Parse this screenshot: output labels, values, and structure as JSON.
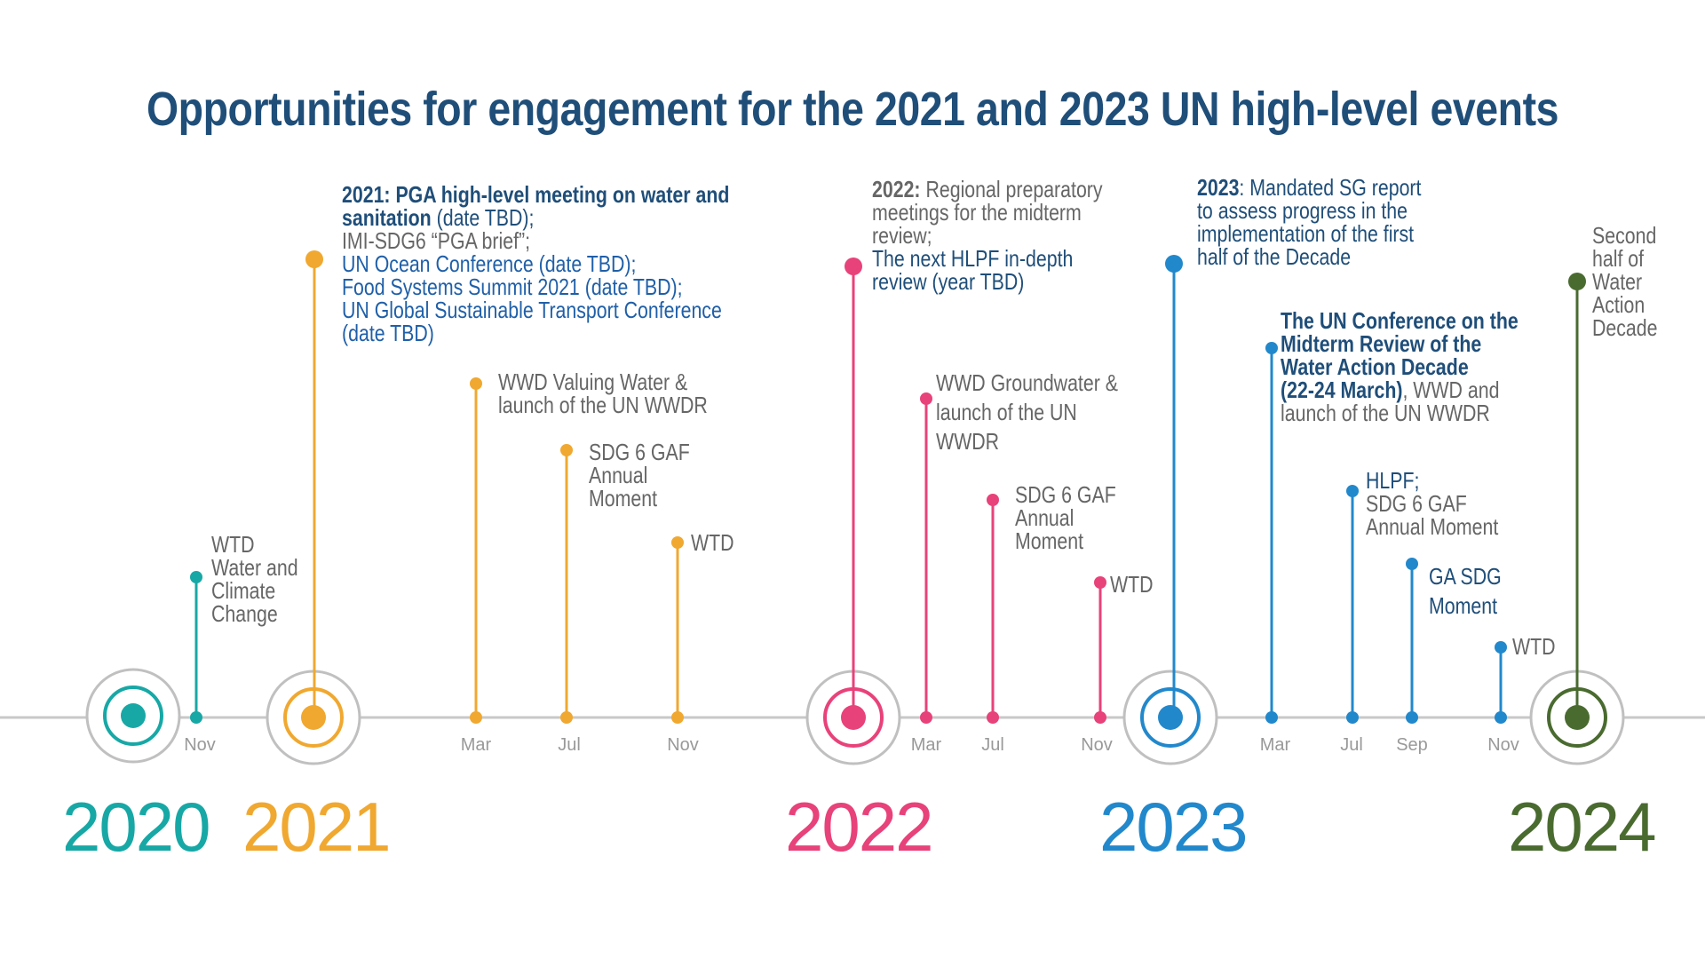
{
  "title": "Opportunities for engagement for the 2021 and 2023 UN high-level events",
  "colors": {
    "y2020": "#17a8a6",
    "y2021": "#f0a830",
    "y2022": "#e8427a",
    "y2023": "#2288cc",
    "y2024": "#4a6b30",
    "axis": "#c8c8c8",
    "ring": "#c0c0c0"
  },
  "years": [
    {
      "label": "2020",
      "color": "#17a8a6"
    },
    {
      "label": "2021",
      "color": "#f0a830"
    },
    {
      "label": "2022",
      "color": "#e8427a"
    },
    {
      "label": "2023",
      "color": "#2288cc"
    },
    {
      "label": "2024",
      "color": "#4a6b30"
    }
  ],
  "months": {
    "nov2020": "Nov",
    "mar2021": "Mar",
    "jul2021": "Jul",
    "nov2021": "Nov",
    "mar2022": "Mar",
    "jul2022": "Jul",
    "nov2022": "Nov",
    "mar2023": "Mar",
    "jul2023": "Jul",
    "sep2023": "Sep",
    "nov2023": "Nov"
  },
  "events": {
    "wtd2020": {
      "l1": "WTD",
      "l2": "Water and",
      "l3": "Climate",
      "l4": "Change"
    },
    "y2021": {
      "bold1": "2021: PGA high-level meeting on water and",
      "bold2": "sanitation",
      "l2rest": " (date TBD);",
      "l3": "IMI-SDG6 “PGA brief”;",
      "l4": "UN Ocean Conference (date TBD);",
      "l5": "Food Systems Summit 2021 (date TBD);",
      "l6": "UN Global Sustainable Transport Conference",
      "l7": "(date TBD)"
    },
    "wwd2021": {
      "l1": "WWD Valuing Water &",
      "l2": "launch of the UN WWDR"
    },
    "gaf2021": {
      "l1": "SDG 6 GAF",
      "l2": "Annual",
      "l3": "Moment"
    },
    "wtd2021": {
      "l1": "WTD"
    },
    "y2022": {
      "bold": "2022:",
      "l1rest": " Regional preparatory",
      "l2": "meetings for the midterm",
      "l3": "review;",
      "l4": "The next HLPF in-depth",
      "l5": "review (year TBD)"
    },
    "wwd2022": {
      "l1": "WWD Groundwater &",
      "l2": "launch of the UN",
      "l3": "WWDR"
    },
    "gaf2022": {
      "l1": "SDG 6 GAF",
      "l2": "Annual",
      "l3": "Moment"
    },
    "wtd2022": {
      "l1": "WTD"
    },
    "y2023": {
      "bold": "2023",
      "l1rest": ": Mandated SG report",
      "l2": "to assess progress in the",
      "l3": "implementation of the first",
      "l4": "half of the Decade"
    },
    "conf2023": {
      "l1": "The UN Conference on the",
      "l2": "Midterm Review of the",
      "l3": "Water Action Decade",
      "l4bold": "(22-24 March)",
      "l4rest": ", WWD and",
      "l5": "launch of the UN WWDR"
    },
    "hlpf2023": {
      "l1": "HLPF;",
      "l2": "SDG 6 GAF",
      "l3": "Annual Moment"
    },
    "ga2023": {
      "l1": "GA SDG",
      "l2": "Moment"
    },
    "wtd2023": {
      "l1": "WTD"
    },
    "y2024": {
      "l1": "Second",
      "l2": "half of",
      "l3": "Water",
      "l4": "Action",
      "l5": "Decade"
    }
  }
}
